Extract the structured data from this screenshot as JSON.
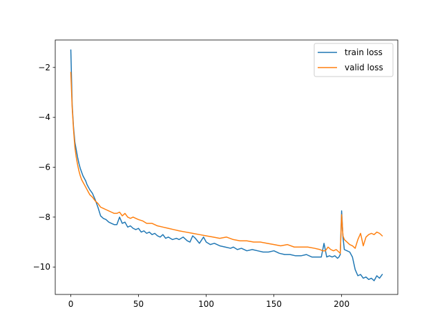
{
  "chart_data": {
    "type": "line",
    "title": "",
    "xlabel": "",
    "ylabel": "",
    "xlim": [
      -11.5,
      241.5
    ],
    "ylim": [
      -11.1,
      -0.9
    ],
    "xticks": [
      0,
      50,
      100,
      150,
      200
    ],
    "yticks": [
      -10,
      -8,
      -6,
      -4,
      -2
    ],
    "grid": false,
    "legend": {
      "position": "top-right"
    },
    "series": [
      {
        "name": "train loss",
        "color": "#1f77b4",
        "x": [
          0,
          1,
          2,
          3,
          4,
          5,
          6,
          7,
          8,
          9,
          10,
          11,
          12,
          14,
          16,
          18,
          20,
          22,
          24,
          26,
          28,
          30,
          32,
          34,
          36,
          38,
          40,
          42,
          44,
          46,
          48,
          50,
          52,
          54,
          56,
          58,
          60,
          62,
          64,
          66,
          68,
          70,
          72,
          75,
          78,
          80,
          83,
          86,
          88,
          90,
          92,
          95,
          98,
          100,
          103,
          106,
          110,
          114,
          118,
          120,
          123,
          126,
          130,
          134,
          138,
          142,
          146,
          150,
          154,
          158,
          162,
          166,
          170,
          174,
          178,
          182,
          185,
          187,
          189,
          191,
          193,
          195,
          197,
          198,
          199,
          200,
          201,
          202,
          204,
          206,
          208,
          210,
          212,
          214,
          216,
          218,
          220,
          222,
          224,
          226,
          228,
          230
        ],
        "values": [
          -1.3,
          -3.5,
          -4.4,
          -5.0,
          -5.3,
          -5.6,
          -5.85,
          -6.05,
          -6.2,
          -6.35,
          -6.45,
          -6.55,
          -6.7,
          -6.9,
          -7.05,
          -7.3,
          -7.6,
          -7.95,
          -8.05,
          -8.1,
          -8.2,
          -8.25,
          -8.3,
          -8.3,
          -8.0,
          -8.25,
          -8.2,
          -8.4,
          -8.35,
          -8.45,
          -8.5,
          -8.45,
          -8.6,
          -8.55,
          -8.65,
          -8.6,
          -8.7,
          -8.65,
          -8.75,
          -8.8,
          -8.7,
          -8.85,
          -8.8,
          -8.9,
          -8.85,
          -8.9,
          -8.8,
          -8.95,
          -9.0,
          -8.75,
          -8.85,
          -9.05,
          -8.8,
          -9.0,
          -9.1,
          -9.05,
          -9.15,
          -9.2,
          -9.25,
          -9.2,
          -9.3,
          -9.25,
          -9.35,
          -9.3,
          -9.35,
          -9.4,
          -9.4,
          -9.35,
          -9.45,
          -9.5,
          -9.5,
          -9.55,
          -9.55,
          -9.5,
          -9.6,
          -9.6,
          -9.6,
          -9.05,
          -9.6,
          -9.55,
          -9.6,
          -9.55,
          -9.65,
          -9.6,
          -9.5,
          -7.75,
          -8.8,
          -9.3,
          -9.35,
          -9.4,
          -9.6,
          -10.1,
          -10.35,
          -10.3,
          -10.45,
          -10.4,
          -10.5,
          -10.45,
          -10.55,
          -10.35,
          -10.45,
          -10.3
        ]
      },
      {
        "name": "valid loss",
        "color": "#ff7f0e",
        "x": [
          0,
          1,
          2,
          3,
          4,
          5,
          6,
          7,
          8,
          9,
          10,
          11,
          12,
          14,
          16,
          18,
          20,
          22,
          24,
          26,
          28,
          30,
          32,
          34,
          36,
          38,
          40,
          42,
          44,
          46,
          48,
          50,
          53,
          56,
          60,
          64,
          68,
          72,
          76,
          80,
          85,
          90,
          95,
          100,
          105,
          110,
          115,
          120,
          125,
          130,
          135,
          140,
          145,
          150,
          155,
          160,
          165,
          170,
          175,
          180,
          184,
          186,
          188,
          190,
          192,
          194,
          196,
          198,
          199,
          200,
          201,
          202,
          204,
          206,
          208,
          210,
          212,
          214,
          216,
          218,
          220,
          222,
          224,
          226,
          228,
          230
        ],
        "values": [
          -2.2,
          -3.6,
          -4.5,
          -5.2,
          -5.6,
          -5.9,
          -6.15,
          -6.35,
          -6.5,
          -6.6,
          -6.7,
          -6.8,
          -6.9,
          -7.1,
          -7.2,
          -7.35,
          -7.45,
          -7.6,
          -7.65,
          -7.7,
          -7.75,
          -7.8,
          -7.85,
          -7.85,
          -7.8,
          -7.95,
          -7.85,
          -8.0,
          -8.05,
          -8.0,
          -8.05,
          -8.1,
          -8.15,
          -8.25,
          -8.25,
          -8.35,
          -8.4,
          -8.45,
          -8.5,
          -8.55,
          -8.6,
          -8.65,
          -8.7,
          -8.75,
          -8.8,
          -8.85,
          -8.8,
          -8.9,
          -8.95,
          -8.95,
          -9.0,
          -9.0,
          -9.05,
          -9.1,
          -9.15,
          -9.1,
          -9.2,
          -9.2,
          -9.2,
          -9.25,
          -9.3,
          -9.35,
          -9.35,
          -9.2,
          -9.3,
          -9.35,
          -9.3,
          -9.4,
          -9.45,
          -7.9,
          -8.75,
          -8.9,
          -9.0,
          -9.1,
          -9.15,
          -9.25,
          -8.9,
          -8.65,
          -9.15,
          -8.8,
          -8.7,
          -8.65,
          -8.7,
          -8.6,
          -8.65,
          -8.75
        ]
      }
    ]
  }
}
